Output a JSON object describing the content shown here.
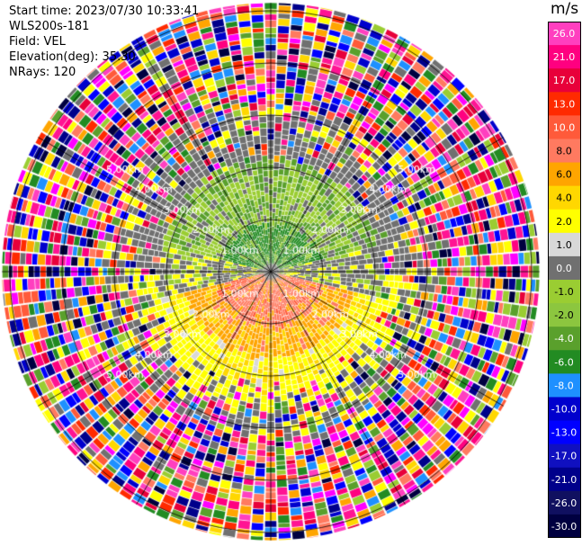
{
  "info": {
    "start_time": "Start time: 2023/07/30 10:33:41",
    "instrument": "WLS200s-181",
    "field": "Field: VEL",
    "elevation": "Elevation(deg): 35.30",
    "nrays": "NRays: 120"
  },
  "colorbar": {
    "unit": "m/s",
    "ticks": [
      "26.0",
      "21.0",
      "17.0",
      "13.0",
      "10.0",
      "8.0",
      "6.0",
      "4.0",
      "2.0",
      "1.0",
      "0.0",
      "-1.0",
      "-2.0",
      "-4.0",
      "-6.0",
      "-8.0",
      "-10.0",
      "-13.0",
      "-17.0",
      "-21.0",
      "-26.0",
      "-30.0"
    ],
    "colors": [
      "#ff3fbf",
      "#ff0080",
      "#e8003a",
      "#ff2a00",
      "#ff5a3a",
      "#ff7a60",
      "#ffa500",
      "#ffd700",
      "#ffff00",
      "#d8d8d8",
      "#707070",
      "#9acd32",
      "#8cc63f",
      "#5aa02c",
      "#228b22",
      "#1e90ff",
      "#0000cd",
      "#0000ff",
      "#1010c0",
      "#00008b",
      "#101060",
      "#000040"
    ]
  },
  "chart_data": {
    "type": "heatmap",
    "title": "",
    "field": "VEL",
    "unit": "m/s",
    "nrays": 120,
    "elevation_deg": 35.3,
    "range_rings_km": [
      1.0,
      2.0,
      3.0,
      4.0,
      5.0
    ],
    "range_ring_labels": [
      "1.00km",
      "2.00km",
      "3.00km",
      "4.00km",
      "5.00km"
    ],
    "max_range_km": 5.5,
    "spokes_deg": [
      0,
      30,
      60,
      90,
      120,
      150,
      180,
      210,
      240,
      270,
      300,
      330
    ],
    "pattern": {
      "north_half_0_to_2km": "negative radial velocity (-2 to -6 m/s), green",
      "south_half_0_to_2km": "positive radial velocity (2 to 8 m/s), yellow/orange",
      "beyond_2.5km": "noisy, full color range"
    }
  }
}
